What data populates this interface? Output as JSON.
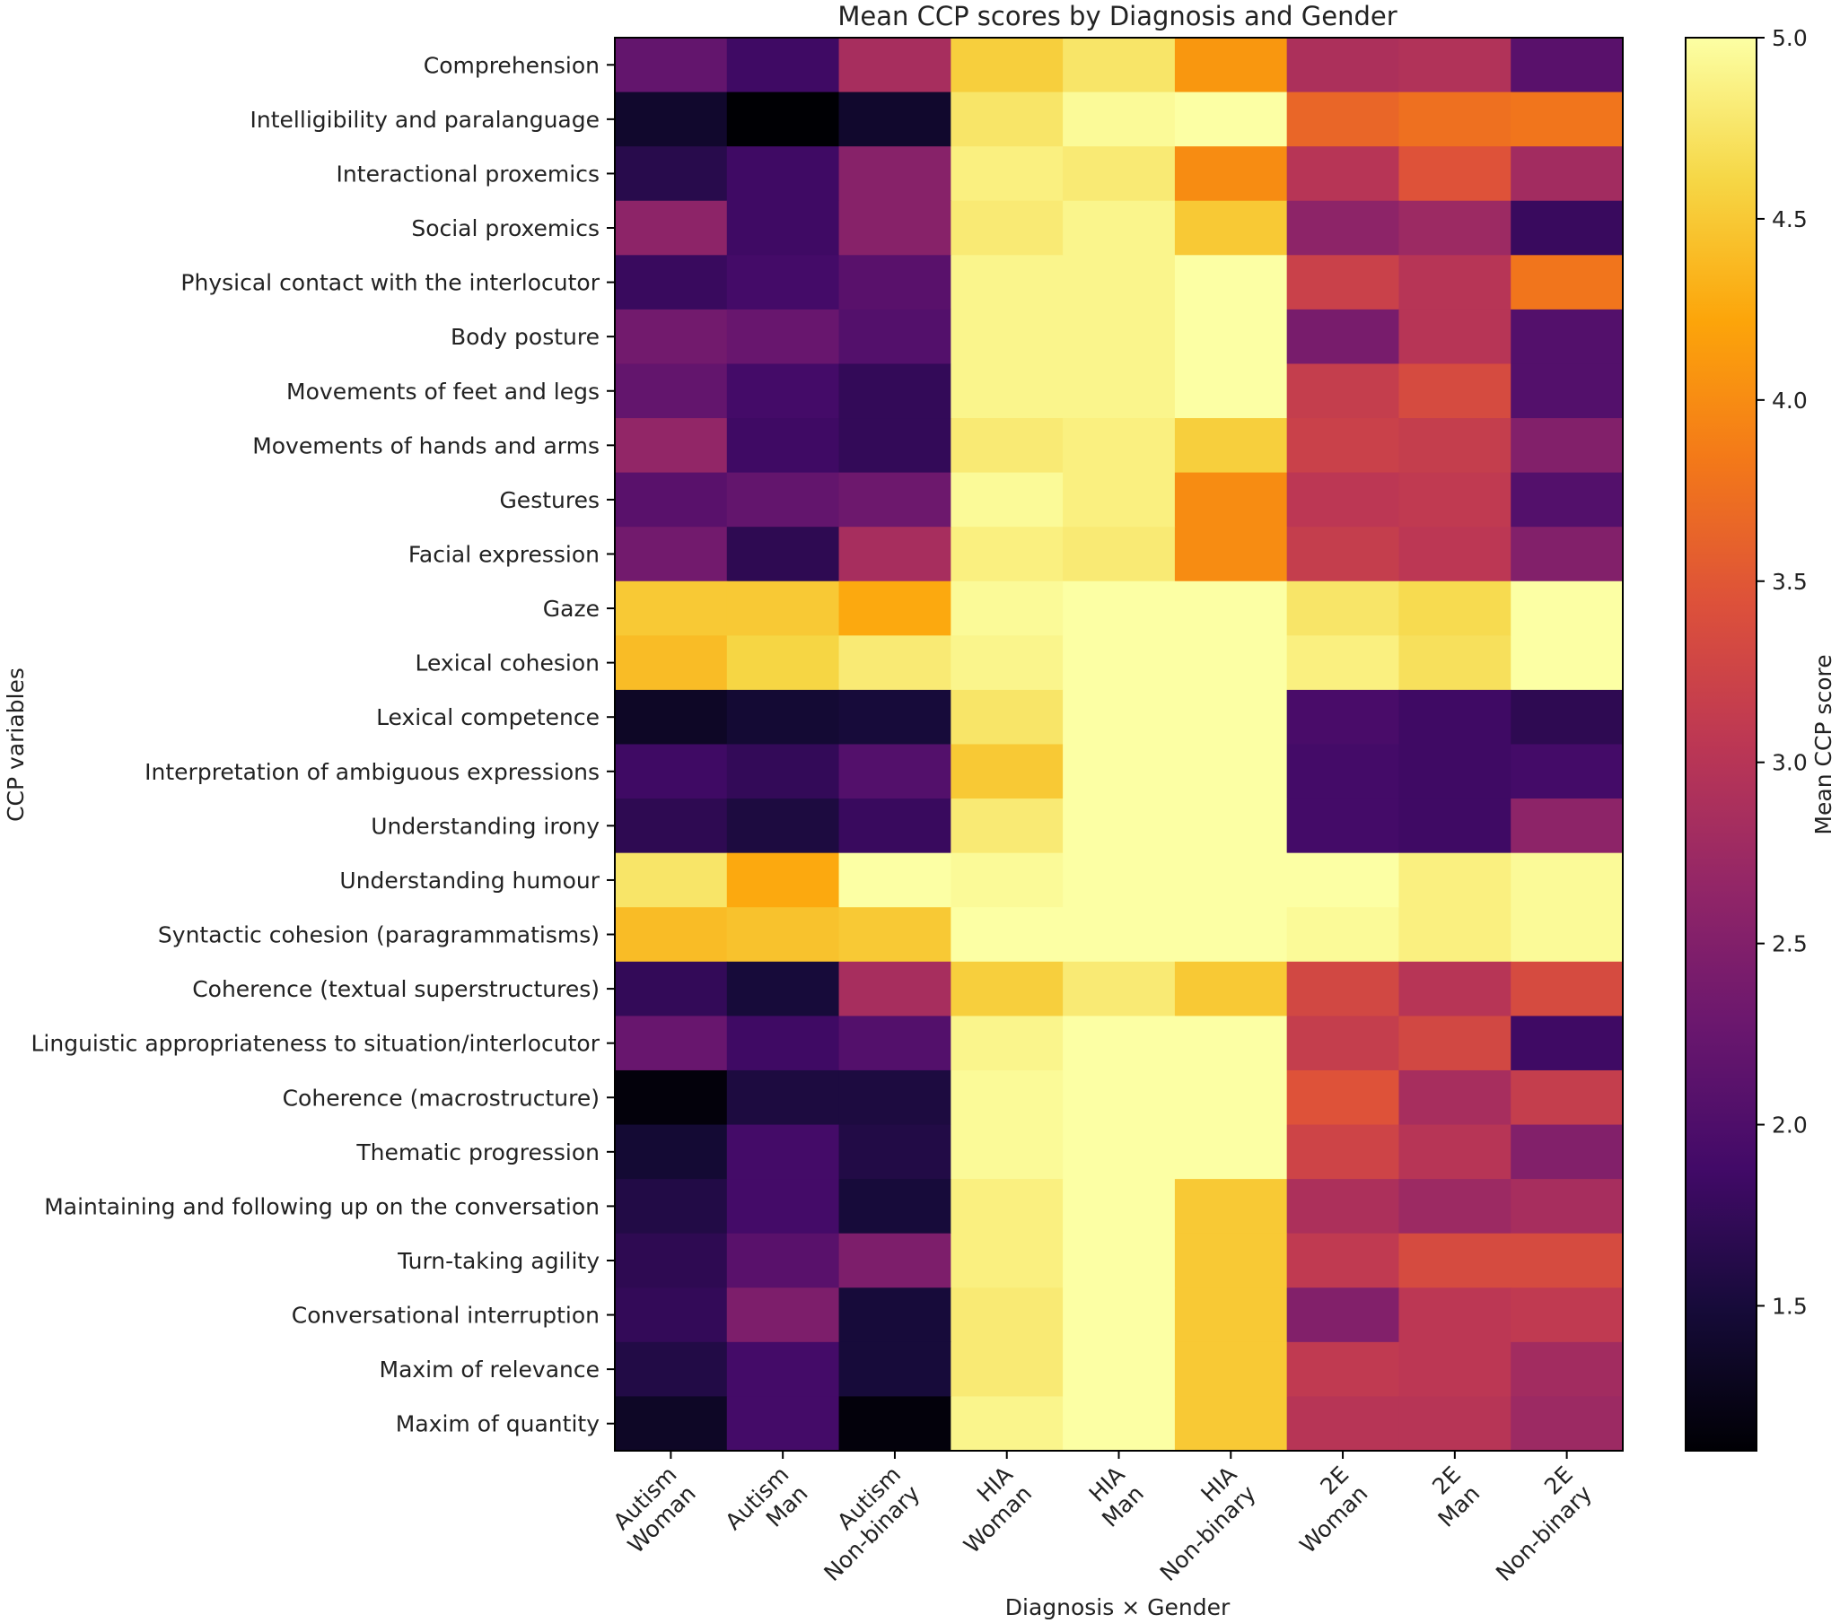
{
  "chart_data": {
    "type": "heatmap",
    "title": "Mean CCP scores by Diagnosis and Gender",
    "xlabel": "Diagnosis × Gender",
    "ylabel": "CCP variables",
    "colorbar_label": "Mean CCP score",
    "colormap": "inferno",
    "vmin": 1.1,
    "vmax": 5.0,
    "colorbar_ticks": [
      1.5,
      2.0,
      2.5,
      3.0,
      3.5,
      4.0,
      4.5,
      5.0
    ],
    "colorbar_tick_labels": [
      "1.5",
      "2.0",
      "2.5",
      "3.0",
      "3.5",
      "4.0",
      "4.5",
      "5.0"
    ],
    "columns": [
      {
        "diagnosis": "Autism",
        "gender": "Woman"
      },
      {
        "diagnosis": "Autism",
        "gender": "Man"
      },
      {
        "diagnosis": "Autism",
        "gender": "Non-binary"
      },
      {
        "diagnosis": "HIA",
        "gender": "Woman"
      },
      {
        "diagnosis": "HIA",
        "gender": "Man"
      },
      {
        "diagnosis": "HIA",
        "gender": "Non-binary"
      },
      {
        "diagnosis": "2E",
        "gender": "Woman"
      },
      {
        "diagnosis": "2E",
        "gender": "Man"
      },
      {
        "diagnosis": "2E",
        "gender": "Non-binary"
      }
    ],
    "rows": [
      "Comprehension",
      "Intelligibility and paralanguage",
      "Interactional proxemics",
      "Social proxemics",
      "Physical contact with the interlocutor",
      "Body posture",
      "Movements of feet and legs",
      "Movements of hands and arms",
      "Gestures",
      "Facial expression",
      "Gaze",
      "Lexical cohesion",
      "Lexical competence",
      "Interpretation of ambiguous expressions",
      "Understanding irony",
      "Understanding humour",
      "Syntactic cohesion (paragrammatisms)",
      "Coherence (textual superstructures)",
      "Linguistic appropriateness to situation/interlocutor",
      "Coherence (macrostructure)",
      "Thematic progression",
      "Maintaining and following up on the conversation",
      "Turn-taking agility",
      "Conversational interruption",
      "Maxim of relevance",
      "Maxim of quantity"
    ],
    "values": [
      [
        2.2,
        1.85,
        2.85,
        4.55,
        4.75,
        4.1,
        2.9,
        2.95,
        2.1
      ],
      [
        1.4,
        1.1,
        1.4,
        4.75,
        4.95,
        5.0,
        3.65,
        3.75,
        3.8
      ],
      [
        1.65,
        1.85,
        2.55,
        4.85,
        4.8,
        4.0,
        3.0,
        3.45,
        2.8
      ],
      [
        2.6,
        1.85,
        2.55,
        4.8,
        4.9,
        4.5,
        2.6,
        2.75,
        1.8
      ],
      [
        1.8,
        1.9,
        2.1,
        4.9,
        4.9,
        5.0,
        3.2,
        3.0,
        3.8
      ],
      [
        2.35,
        2.25,
        2.05,
        4.9,
        4.9,
        5.0,
        2.4,
        3.0,
        2.05
      ],
      [
        2.2,
        1.9,
        1.75,
        4.9,
        4.9,
        5.0,
        3.15,
        3.35,
        2.05
      ],
      [
        2.65,
        1.85,
        1.75,
        4.8,
        4.85,
        4.55,
        3.2,
        3.15,
        2.5
      ],
      [
        2.1,
        2.2,
        2.3,
        4.95,
        4.85,
        4.0,
        3.05,
        3.1,
        2.05
      ],
      [
        2.35,
        1.7,
        2.85,
        4.85,
        4.8,
        4.0,
        3.15,
        3.05,
        2.5
      ],
      [
        4.5,
        4.5,
        4.25,
        4.95,
        5.0,
        5.0,
        4.75,
        4.65,
        5.0
      ],
      [
        4.4,
        4.6,
        4.8,
        4.9,
        5.0,
        5.0,
        4.85,
        4.7,
        5.0
      ],
      [
        1.35,
        1.45,
        1.5,
        4.75,
        5.0,
        5.0,
        1.95,
        1.85,
        1.7
      ],
      [
        1.85,
        1.75,
        2.05,
        4.5,
        5.0,
        5.0,
        1.9,
        1.85,
        1.9
      ],
      [
        1.7,
        1.55,
        1.8,
        4.8,
        5.0,
        5.0,
        1.9,
        1.85,
        2.6
      ],
      [
        4.75,
        4.25,
        5.0,
        4.95,
        5.0,
        5.0,
        5.0,
        4.85,
        4.95
      ],
      [
        4.4,
        4.45,
        4.5,
        5.0,
        5.0,
        5.0,
        4.95,
        4.85,
        4.95
      ],
      [
        1.75,
        1.5,
        2.85,
        4.55,
        4.8,
        4.5,
        3.3,
        3.0,
        3.35
      ],
      [
        2.25,
        1.85,
        2.05,
        4.9,
        5.0,
        5.0,
        3.15,
        3.3,
        1.85
      ],
      [
        1.15,
        1.55,
        1.55,
        4.95,
        5.0,
        5.0,
        3.45,
        2.85,
        3.15
      ],
      [
        1.45,
        1.9,
        1.6,
        4.95,
        5.0,
        5.0,
        3.25,
        3.0,
        2.5
      ],
      [
        1.6,
        1.9,
        1.5,
        4.85,
        5.0,
        4.5,
        2.9,
        2.75,
        2.85
      ],
      [
        1.7,
        2.1,
        2.45,
        4.85,
        5.0,
        4.5,
        3.1,
        3.35,
        3.35
      ],
      [
        1.75,
        2.45,
        1.5,
        4.8,
        5.0,
        4.5,
        2.5,
        3.05,
        3.1
      ],
      [
        1.6,
        1.9,
        1.5,
        4.8,
        5.0,
        4.5,
        3.1,
        3.05,
        2.8
      ],
      [
        1.35,
        1.9,
        1.15,
        4.9,
        5.0,
        4.5,
        3.0,
        3.0,
        2.75
      ]
    ]
  }
}
